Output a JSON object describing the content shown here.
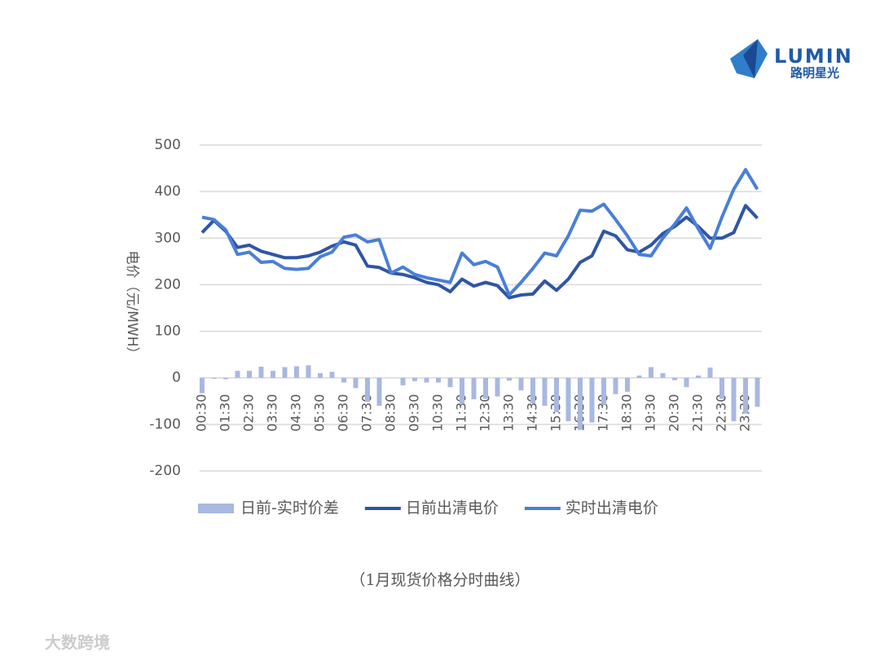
{
  "logo": {
    "name": "LUMIN",
    "subtitle": "路明星光"
  },
  "caption": "（1月现货价格分时曲线）",
  "watermark": "大数跨境",
  "chart_data": {
    "type": "combo",
    "y_label": "电价（元/MWH）",
    "categories": [
      "00:30",
      null,
      "01:30",
      null,
      "02:30",
      null,
      "03:30",
      null,
      "04:30",
      null,
      "05:30",
      null,
      "06:30",
      null,
      "07:30",
      null,
      "08:30",
      null,
      "09:30",
      null,
      "10:30",
      null,
      "11:30",
      null,
      "12:30",
      null,
      "13:30",
      null,
      "14:30",
      null,
      "15:30",
      null,
      "16:30",
      null,
      "17:30",
      null,
      "18:30",
      null,
      "19:30",
      null,
      "20:30",
      null,
      "21:30",
      null,
      "22:30",
      null,
      "23:30",
      null
    ],
    "series": [
      {
        "name": "日前-实时价差",
        "type": "bar",
        "color": "#a9b8e0",
        "values": [
          -33,
          -2,
          -3,
          15,
          15,
          24,
          15,
          23,
          25,
          27,
          10,
          13,
          -10,
          -22,
          -52,
          -60,
          0,
          -16,
          -7,
          -10,
          -10,
          -20,
          -56,
          -46,
          -45,
          -40,
          -6,
          -27,
          -55,
          -60,
          -74,
          -93,
          -112,
          -96,
          -58,
          -35,
          -30,
          5,
          23,
          10,
          -5,
          -20,
          5,
          22,
          -45,
          -93,
          -77,
          -62
        ]
      },
      {
        "name": "日前出清电价",
        "type": "line",
        "color": "#2f55a4",
        "values": [
          312,
          338,
          315,
          280,
          285,
          272,
          265,
          258,
          258,
          262,
          270,
          283,
          292,
          285,
          240,
          237,
          225,
          222,
          215,
          205,
          200,
          185,
          212,
          197,
          205,
          198,
          172,
          178,
          180,
          208,
          188,
          212,
          248,
          262,
          315,
          305,
          275,
          270,
          285,
          310,
          325,
          345,
          325,
          300,
          300,
          312,
          370,
          343
        ]
      },
      {
        "name": "实时出清电价",
        "type": "line",
        "color": "#4a7fd6",
        "values": [
          345,
          340,
          318,
          265,
          270,
          248,
          250,
          235,
          233,
          235,
          260,
          270,
          302,
          307,
          292,
          297,
          225,
          238,
          222,
          215,
          210,
          205,
          268,
          243,
          250,
          238,
          178,
          205,
          235,
          268,
          262,
          305,
          360,
          358,
          373,
          340,
          305,
          265,
          262,
          300,
          330,
          365,
          320,
          278,
          345,
          405,
          447,
          405
        ]
      }
    ],
    "ylim": [
      -200,
      500
    ],
    "yticks": [
      -200,
      -100,
      0,
      100,
      200,
      300,
      400,
      500
    ],
    "grid": true,
    "legend": "bottom"
  }
}
